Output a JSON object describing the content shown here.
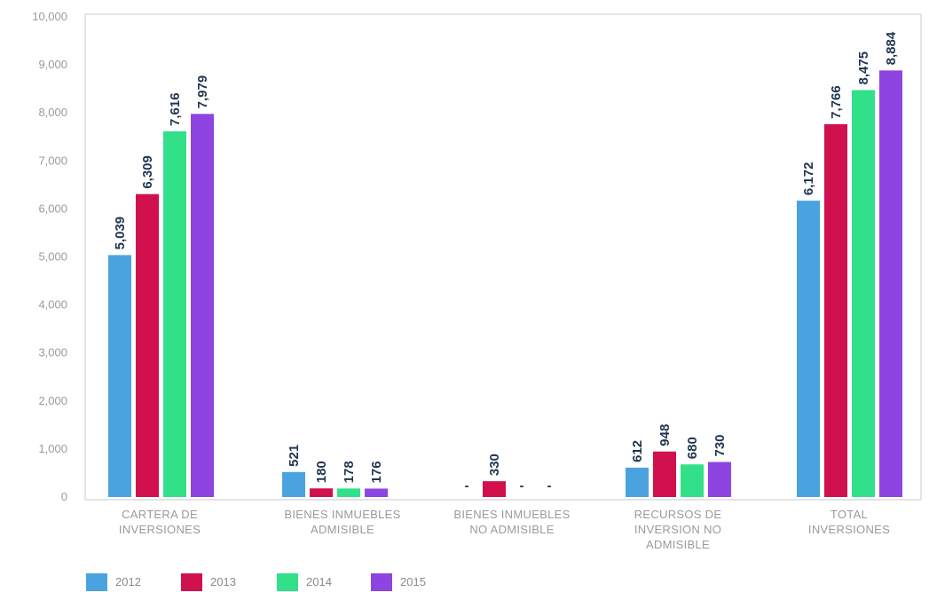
{
  "chart_data": {
    "type": "bar",
    "categories": [
      [
        "CARTERA DE",
        "INVERSIONES"
      ],
      [
        "BIENES INMUEBLES",
        "ADMISIBLE"
      ],
      [
        "BIENES INMUEBLES",
        "NO ADMISIBLE"
      ],
      [
        "RECURSOS DE",
        "INVERSION NO",
        "ADMISIBLE"
      ],
      [
        "TOTAL",
        "INVERSIONES"
      ]
    ],
    "series": [
      {
        "name": "2012",
        "color": "#4aa3df",
        "values": [
          5039,
          521,
          0,
          612,
          6172
        ],
        "labels": [
          "5,039",
          "521",
          "-",
          "612",
          "6,172"
        ]
      },
      {
        "name": "2013",
        "color": "#d1114e",
        "values": [
          6309,
          180,
          330,
          948,
          7766
        ],
        "labels": [
          "6,309",
          "180",
          "330",
          "948",
          "7,766"
        ]
      },
      {
        "name": "2014",
        "color": "#33e08a",
        "values": [
          7616,
          178,
          0,
          680,
          8475
        ],
        "labels": [
          "7,616",
          "178",
          "-",
          "680",
          "8,475"
        ]
      },
      {
        "name": "2015",
        "color": "#8e44e0",
        "values": [
          7979,
          176,
          0,
          730,
          8884
        ],
        "labels": [
          "7,979",
          "176",
          "-",
          "730",
          "8,884"
        ]
      }
    ],
    "yticks": [
      "0",
      "1,000",
      "2,000",
      "3,000",
      "4,000",
      "5,000",
      "6,000",
      "7,000",
      "8,000",
      "9,000",
      "10,000"
    ],
    "ylim": [
      0,
      10000
    ],
    "legend_position": "bottom-left",
    "grid": false
  }
}
